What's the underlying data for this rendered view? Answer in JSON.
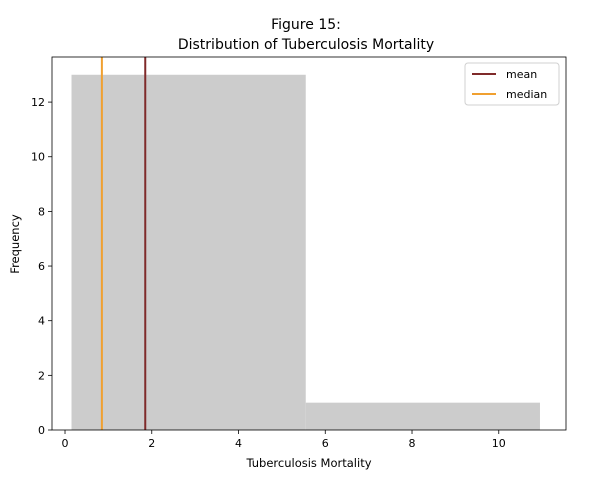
{
  "chart_data": {
    "type": "bar",
    "title_line1": "Figure 15:",
    "title_line2": "Distribution of Tuberculosis Mortality",
    "xlabel": "Tuberculosis Mortality",
    "ylabel": "Frequency",
    "xlim": [
      -0.3,
      11.55
    ],
    "ylim": [
      0,
      13.65
    ],
    "xticks": [
      0,
      2,
      4,
      6,
      8,
      10
    ],
    "yticks": [
      0,
      2,
      4,
      6,
      8,
      10,
      12
    ],
    "bins": [
      {
        "x0": 0.15,
        "x1": 5.55,
        "count": 13
      },
      {
        "x0": 5.55,
        "x1": 10.95,
        "count": 1
      }
    ],
    "mean": 1.85,
    "median": 0.85,
    "grid": false,
    "legend_position": "top-right",
    "legend": [
      {
        "label": "mean",
        "color": "#7f2a2a"
      },
      {
        "label": "median",
        "color": "#f0a030"
      }
    ],
    "bar_color": "#cccccc"
  }
}
